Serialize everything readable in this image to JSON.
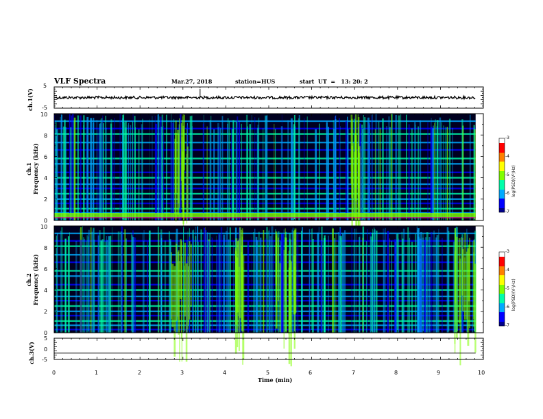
{
  "header": {
    "title": "VLF Spectra",
    "date": "Mar.27, 2018",
    "station": "station=HUS",
    "start": "start  UT  =   13: 20: 2"
  },
  "chart_data": [
    {
      "type": "line",
      "panel": "ch1-waveform",
      "ylabel": "ch.1(V)",
      "ylim": [
        -5,
        5
      ],
      "yticks": [
        "5",
        "-5"
      ],
      "xlim": [
        0,
        10
      ],
      "series": [
        {
          "values_description_level": 0
        }
      ]
    },
    {
      "type": "heatmap",
      "panel": "ch1-spectrogram",
      "ylabel_line1": "ch.1",
      "ylabel_line2": "Frequency  (kHz)",
      "ylim": [
        0,
        10
      ],
      "yticks": [
        "0",
        "2",
        "4",
        "6",
        "8",
        "10"
      ],
      "xlim": [
        0,
        9.82
      ],
      "colorbar": {
        "label": "log(PSD)(V²/Hz)",
        "range": [
          -7,
          -3
        ],
        "ticks": [
          "-3",
          "-4",
          "-5",
          "-6",
          "-7"
        ]
      }
    },
    {
      "type": "heatmap",
      "panel": "ch2-spectrogram",
      "ylabel_line1": "ch.2",
      "ylabel_line2": "Frequency  (kHz)",
      "ylim": [
        0,
        10
      ],
      "yticks": [
        "0",
        "2",
        "4",
        "6",
        "8",
        "10"
      ],
      "xlim": [
        0,
        9.82
      ],
      "colorbar": {
        "label": "log(PSD)(V²/Hz)",
        "range": [
          -7,
          -3
        ],
        "ticks": [
          "-3",
          "-4",
          "-5",
          "-6",
          "-7"
        ]
      }
    },
    {
      "type": "line",
      "panel": "ch3-waveform",
      "ylabel": "ch.3(V)",
      "ylim": [
        -5,
        5
      ],
      "yticks": [
        "5",
        "0",
        "-5"
      ],
      "xlim": [
        0,
        10
      ],
      "series": [
        {
          "constant": -2
        }
      ]
    }
  ],
  "xaxis": {
    "label": "Time  (min)",
    "ticks": [
      "0",
      "1",
      "2",
      "3",
      "4",
      "5",
      "6",
      "7",
      "8",
      "9",
      "10"
    ]
  },
  "colors": {
    "background_dark": "#000020",
    "colormap": [
      "#00008b",
      "#0000ff",
      "#00aaff",
      "#00ffaa",
      "#80ff00",
      "#ffff00",
      "#ff8000",
      "#ff0000",
      "#ffffff"
    ]
  }
}
